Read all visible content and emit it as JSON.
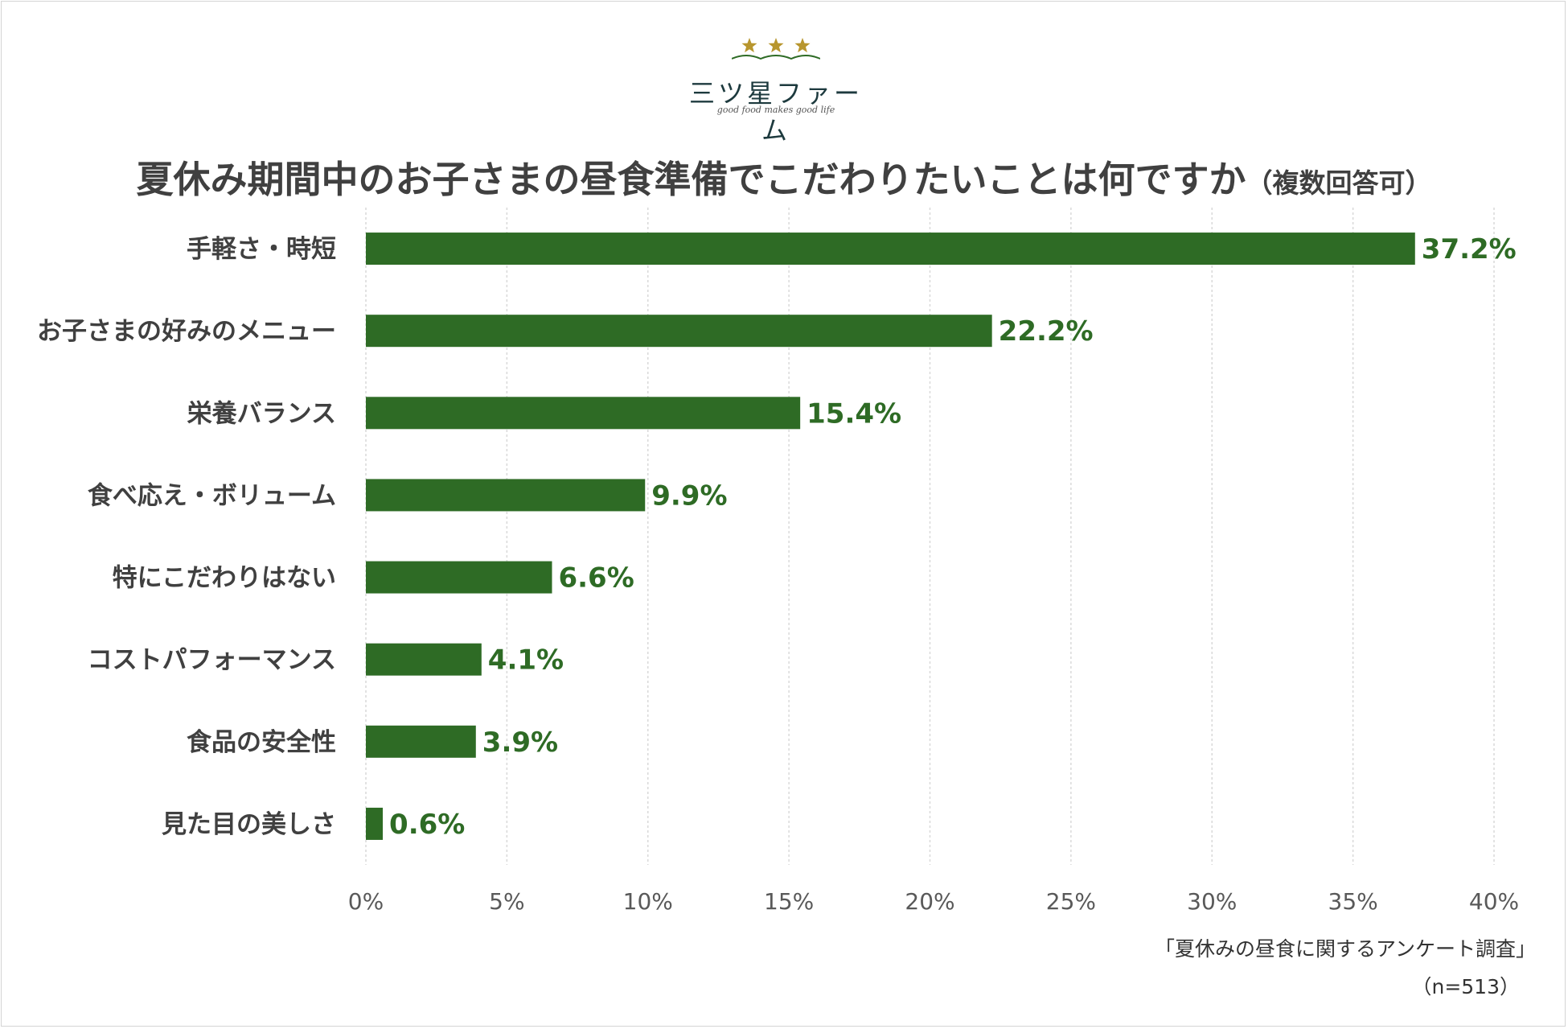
{
  "logo": {
    "name": "三ツ星ファーム",
    "tagline": "good food makes good life",
    "star_color": "#b8962e"
  },
  "title": {
    "main": "夏休み期間中のお子さまの昼食準備でこだわりたいことは何ですか",
    "sub": "（複数回答可）"
  },
  "chart_data": {
    "type": "bar",
    "orientation": "horizontal",
    "categories": [
      "手軽さ・時短",
      "お子さまの好みのメニュー",
      "栄養バランス",
      "食べ応え・ボリューム",
      "特にこだわりはない",
      "コストパフォーマンス",
      "食品の安全性",
      "見た目の美しさ"
    ],
    "values": [
      37.2,
      22.2,
      15.4,
      9.9,
      6.6,
      4.1,
      3.9,
      0.6
    ],
    "value_labels": [
      "37.2%",
      "22.2%",
      "15.4%",
      "9.9%",
      "6.6%",
      "4.1%",
      "3.9%",
      "0.6%"
    ],
    "xlim": [
      0,
      40
    ],
    "xticks": [
      0,
      5,
      10,
      15,
      20,
      25,
      30,
      35,
      40
    ],
    "xtick_labels": [
      "0%",
      "5%",
      "10%",
      "15%",
      "20%",
      "25%",
      "30%",
      "35%",
      "40%"
    ],
    "grid": "vertical dashed",
    "bar_color": "#2e6b25",
    "label_color": "#2e6b25"
  },
  "footer": {
    "source": "「夏休みの昼食に関するアンケート調査」",
    "sample": "（n=513）"
  }
}
